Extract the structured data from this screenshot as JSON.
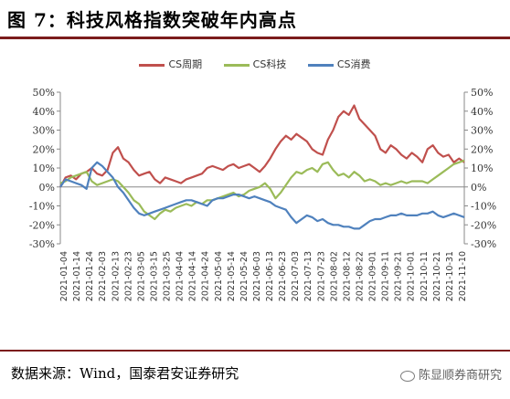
{
  "title": "图 7：科技风格指数突破年内高点",
  "source": "数据来源：Wind，国泰君安证券研究",
  "watermark": "陈显顺券商研究",
  "chart_data": {
    "type": "line",
    "y_ticks": [
      "50%",
      "40%",
      "30%",
      "20%",
      "10%",
      "0%",
      "-10%",
      "-20%",
      "-30%"
    ],
    "ylim": [
      -30,
      50
    ],
    "grid": false,
    "legend_position": "top-center",
    "x_ticks": [
      "2021-01-04",
      "2021-01-14",
      "2021-01-24",
      "2021-02-03",
      "2021-02-13",
      "2021-02-23",
      "2021-03-05",
      "2021-03-15",
      "2021-03-25",
      "2021-04-04",
      "2021-04-14",
      "2021-04-24",
      "2021-05-04",
      "2021-05-14",
      "2021-05-24",
      "2021-06-03",
      "2021-06-13",
      "2021-06-23",
      "2021-07-03",
      "2021-07-13",
      "2021-07-23",
      "2021-08-02",
      "2021-08-12",
      "2021-08-22",
      "2021-09-01",
      "2021-09-11",
      "2021-09-21",
      "2021-10-01",
      "2021-10-11",
      "2021-10-21",
      "2021-10-31",
      "2021-11-10"
    ],
    "series": [
      {
        "name": "CS周期",
        "color": "#c0504d",
        "values": [
          0,
          5,
          6,
          4,
          7,
          8,
          10,
          7,
          6,
          9,
          18,
          21,
          15,
          13,
          9,
          6,
          7,
          8,
          4,
          2,
          5,
          4,
          3,
          2,
          4,
          5,
          6,
          7,
          10,
          11,
          10,
          9,
          11,
          12,
          10,
          11,
          12,
          10,
          8,
          11,
          15,
          20,
          24,
          27,
          25,
          28,
          26,
          24,
          20,
          18,
          17,
          25,
          30,
          37,
          40,
          38,
          43,
          36,
          33,
          30,
          27,
          20,
          18,
          22,
          20,
          17,
          15,
          18,
          16,
          13,
          20,
          22,
          18,
          16,
          17,
          13,
          15,
          13
        ]
      },
      {
        "name": "CS科技",
        "color": "#9bbb59",
        "values": [
          2,
          3,
          5,
          6,
          7,
          8,
          3,
          1,
          2,
          3,
          4,
          3,
          0,
          -3,
          -7,
          -9,
          -13,
          -15,
          -17,
          -14,
          -12,
          -13,
          -11,
          -10,
          -9,
          -10,
          -8,
          -9,
          -7,
          -7,
          -6,
          -5,
          -4,
          -3,
          -5,
          -4,
          -2,
          -1,
          0,
          2,
          -1,
          -6,
          -3,
          1,
          5,
          8,
          7,
          9,
          10,
          8,
          12,
          13,
          9,
          6,
          7,
          5,
          8,
          6,
          3,
          4,
          3,
          1,
          2,
          1,
          2,
          3,
          2,
          3,
          3,
          3,
          2,
          4,
          6,
          8,
          10,
          12,
          13,
          14
        ]
      },
      {
        "name": "CS消费",
        "color": "#4f81bd",
        "values": [
          0,
          4,
          3,
          2,
          1,
          -1,
          10,
          13,
          11,
          8,
          5,
          0,
          -3,
          -7,
          -11,
          -14,
          -15,
          -14,
          -13,
          -12,
          -11,
          -10,
          -9,
          -8,
          -7,
          -7,
          -8,
          -9,
          -10,
          -7,
          -6,
          -6,
          -5,
          -4,
          -4,
          -5,
          -6,
          -5,
          -6,
          -7,
          -8,
          -10,
          -11,
          -12,
          -16,
          -19,
          -17,
          -15,
          -16,
          -18,
          -17,
          -19,
          -20,
          -20,
          -21,
          -21,
          -22,
          -22,
          -20,
          -18,
          -17,
          -17,
          -16,
          -15,
          -15,
          -14,
          -15,
          -15,
          -15,
          -14,
          -14,
          -13,
          -15,
          -16,
          -15,
          -14,
          -15,
          -16
        ]
      }
    ]
  }
}
